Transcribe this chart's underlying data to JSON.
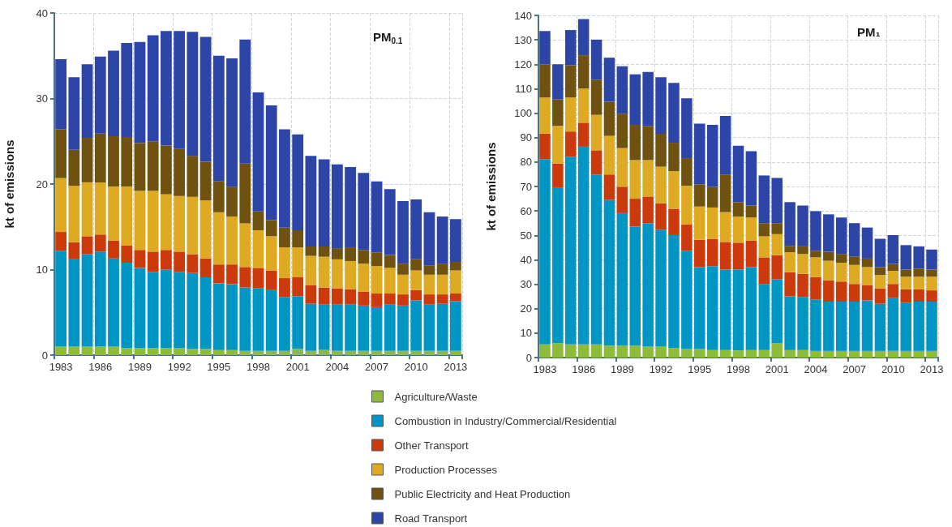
{
  "chart_data": [
    {
      "type": "bar",
      "title": "PM$_{0.1}$",
      "ylabel": "kt of emissions",
      "stacked": true,
      "grid": true,
      "legend": "bottom",
      "categories": [
        "1983",
        null,
        null,
        "1986",
        null,
        null,
        "1989",
        null,
        null,
        "1992",
        null,
        null,
        "1995",
        null,
        null,
        "1998",
        null,
        null,
        "2001",
        null,
        null,
        "2004",
        null,
        null,
        "2007",
        null,
        null,
        "2010",
        null,
        null,
        "2013"
      ],
      "ylim": [
        0,
        40
      ],
      "yticks": [
        0,
        10,
        20,
        30,
        40
      ],
      "series": [
        {
          "name": "Agriculture/Waste",
          "color": "#8dbb3a",
          "values": [
            1,
            1,
            1,
            1,
            1,
            0.8,
            0.8,
            0.8,
            0.8,
            0.8,
            0.7,
            0.7,
            0.6,
            0.6,
            0.5,
            0.5,
            0.5,
            0.5,
            0.7,
            0.5,
            0.6,
            0.5,
            0.5,
            0.5,
            0.5,
            0.5,
            0.5,
            0.5,
            0.5,
            0.5,
            0.5
          ]
        },
        {
          "name": "Combustion in Industry/Commercial/Residential",
          "color": "#0096c4",
          "values": [
            11.2,
            10.2,
            10.8,
            11.1,
            10.3,
            10.0,
            9.4,
            8.9,
            9.2,
            8.9,
            8.9,
            8.4,
            7.8,
            7.7,
            7.4,
            7.3,
            7.1,
            6.3,
            6.2,
            5.5,
            5.3,
            5.4,
            5.4,
            5.3,
            5.1,
            5.4,
            5.3,
            5.9,
            5.4,
            5.5,
            5.8
          ]
        },
        {
          "name": "Other Transport",
          "color": "#cc3a0c",
          "values": [
            2.2,
            2.0,
            2.1,
            2.0,
            2.1,
            2.0,
            2.1,
            2.4,
            2.3,
            2.4,
            2.2,
            2.2,
            2.2,
            2.3,
            2.4,
            2.4,
            2.3,
            2.2,
            2.2,
            2.2,
            2.0,
            1.9,
            1.8,
            1.6,
            1.6,
            1.3,
            1.3,
            1.2,
            1.2,
            1.1,
            0.9
          ]
        },
        {
          "name": "Production Processes",
          "color": "#ddaa22",
          "values": [
            6.3,
            6.6,
            6.3,
            6.1,
            6.3,
            6.9,
            6.9,
            7.1,
            6.5,
            6.5,
            6.7,
            6.8,
            6.1,
            5.6,
            5.1,
            4.4,
            4.0,
            3.6,
            3.5,
            3.4,
            3.6,
            3.4,
            3.3,
            3.3,
            3.2,
            3.0,
            2.3,
            2.3,
            2.3,
            2.3,
            2.7
          ]
        },
        {
          "name": "Public Electricity and Heat Production",
          "color": "#6f5210",
          "values": [
            5.7,
            4.2,
            5.2,
            5.7,
            5.9,
            5.8,
            5.6,
            5.8,
            5.7,
            5.5,
            4.8,
            4.5,
            3.6,
            3.5,
            7.0,
            2.2,
            1.9,
            2.3,
            2.0,
            1.1,
            1.2,
            1.3,
            1.6,
            1.6,
            1.6,
            1.5,
            1.3,
            1.3,
            1.1,
            1.3,
            1.0
          ]
        },
        {
          "name": "Road Transport",
          "color": "#2c45a6",
          "values": [
            8.2,
            8.5,
            8.6,
            9.0,
            10.0,
            11.0,
            11.8,
            12.4,
            13.4,
            13.8,
            14.5,
            14.6,
            14.7,
            15.0,
            14.5,
            13.9,
            13.4,
            11.5,
            11.2,
            10.6,
            10.2,
            9.8,
            9.4,
            9.0,
            8.3,
            7.7,
            7.3,
            7.0,
            6.2,
            5.5,
            5.0
          ]
        }
      ]
    },
    {
      "type": "bar",
      "title": "PM₁",
      "ylabel": "kt of emissions",
      "stacked": true,
      "grid": true,
      "categories": [
        "1983",
        null,
        null,
        "1986",
        null,
        null,
        "1989",
        null,
        null,
        "1992",
        null,
        null,
        "1995",
        null,
        null,
        "1998",
        null,
        null,
        "2001",
        null,
        null,
        "2004",
        null,
        null,
        "2007",
        null,
        null,
        "2010",
        null,
        null,
        "2013"
      ],
      "ylim": [
        0,
        140
      ],
      "yticks": [
        0,
        10,
        20,
        30,
        40,
        50,
        60,
        70,
        80,
        90,
        100,
        110,
        120,
        130,
        140
      ],
      "series": [
        {
          "color": "#8dbb3a",
          "values": [
            5.4,
            5.9,
            5.4,
            5.4,
            5.4,
            4.9,
            4.9,
            4.9,
            4.5,
            4.5,
            4.0,
            3.5,
            3.5,
            3.1,
            3.1,
            2.9,
            3.1,
            3.1,
            5.9,
            3.1,
            3.1,
            2.7,
            2.7,
            2.7,
            2.7,
            2.7,
            2.7,
            2.7,
            2.7,
            2.7,
            2.7
          ]
        },
        {
          "color": "#0096c4",
          "values": [
            75.8,
            63.5,
            76.8,
            80.9,
            69.5,
            59.6,
            54.2,
            48.8,
            50.5,
            47.8,
            46.1,
            40.2,
            33.5,
            34.3,
            32.9,
            33.2,
            33.9,
            27.0,
            26.1,
            21.9,
            21.7,
            21.1,
            20.2,
            20.2,
            20.2,
            20.7,
            19.3,
            21.6,
            19.8,
            20.2,
            20.2
          ]
        },
        {
          "color": "#cc3a0c",
          "values": [
            10.4,
            10.0,
            10.3,
            9.8,
            9.9,
            10.4,
            10.8,
            11.3,
            10.9,
            10.8,
            10.8,
            10.8,
            11.2,
            11.2,
            11.3,
            10.9,
            10.8,
            10.9,
            9.9,
            9.9,
            9.4,
            9.1,
            8.7,
            8.2,
            7.2,
            6.3,
            6.3,
            5.8,
            5.4,
            5.0,
            4.6
          ]
        },
        {
          "color": "#ddaa22",
          "values": [
            14.8,
            15.4,
            13.9,
            14.0,
            14.5,
            15.8,
            15.8,
            15.8,
            14.9,
            15.0,
            15.4,
            15.8,
            13.6,
            12.8,
            12.2,
            10.7,
            9.5,
            8.6,
            8.6,
            8.2,
            8.2,
            8.1,
            8.0,
            7.7,
            7.8,
            7.3,
            5.5,
            5.4,
            5.2,
            5.2,
            5.6
          ]
        },
        {
          "color": "#6f5210",
          "values": [
            13.6,
            10.8,
            13.2,
            13.6,
            14.4,
            14.0,
            14.1,
            14.4,
            14.0,
            13.5,
            11.6,
            11.3,
            9.1,
            8.5,
            15.4,
            5.9,
            4.9,
            5.4,
            4.5,
            2.6,
            3.1,
            2.7,
            3.7,
            3.6,
            3.5,
            3.5,
            3.2,
            2.8,
            2.9,
            3.3,
            2.9
          ]
        },
        {
          "color": "#2c45a6",
          "values": [
            13.6,
            14.4,
            14.4,
            14.8,
            16.4,
            18.0,
            19.4,
            20.7,
            22.1,
            23.1,
            24.5,
            24.5,
            24.8,
            25.3,
            24.0,
            23.1,
            22.2,
            19.5,
            18.5,
            17.9,
            16.7,
            16.2,
            15.3,
            14.9,
            13.6,
            12.7,
            11.6,
            11.8,
            10.0,
            9.1,
            8.2
          ]
        }
      ]
    }
  ]
}
